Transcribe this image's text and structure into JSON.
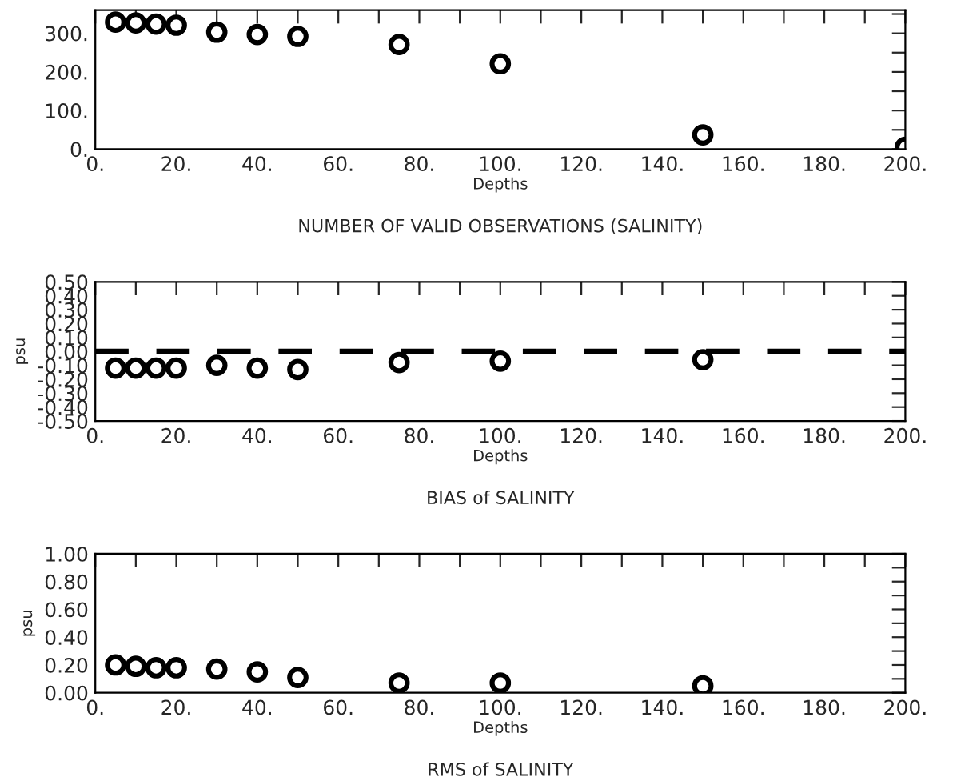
{
  "chart_data": [
    {
      "type": "scatter",
      "title": "NUMBER OF VALID OBSERVATIONS (SALINITY)",
      "xlabel": "Depths",
      "marker": "circle",
      "grid": false,
      "x": [
        5,
        10,
        15,
        20,
        30,
        40,
        50,
        75,
        100,
        150,
        200
      ],
      "series": [
        {
          "color": "#000000",
          "values": [
            329,
            327,
            324,
            321,
            303,
            297,
            292,
            271,
            221,
            37,
            5
          ]
        }
      ],
      "xlim": [
        0,
        200
      ],
      "xticks": [
        {
          "value": 0,
          "label": "0."
        },
        {
          "value": 10,
          "label": null
        },
        {
          "value": 20,
          "label": "20."
        },
        {
          "value": 30,
          "label": null
        },
        {
          "value": 40,
          "label": "40."
        },
        {
          "value": 50,
          "label": null
        },
        {
          "value": 60,
          "label": "60."
        },
        {
          "value": 70,
          "label": null
        },
        {
          "value": 80,
          "label": "80."
        },
        {
          "value": 90,
          "label": null
        },
        {
          "value": 100,
          "label": "100."
        },
        {
          "value": 110,
          "label": null
        },
        {
          "value": 120,
          "label": "120."
        },
        {
          "value": 130,
          "label": null
        },
        {
          "value": 140,
          "label": "140."
        },
        {
          "value": 150,
          "label": null
        },
        {
          "value": 160,
          "label": "160."
        },
        {
          "value": 170,
          "label": null
        },
        {
          "value": 180,
          "label": "180."
        },
        {
          "value": 190,
          "label": null
        },
        {
          "value": 200,
          "label": "200."
        }
      ],
      "ylim": [
        0,
        360
      ],
      "yticks": [
        {
          "value": 0,
          "label": "0."
        },
        {
          "value": 50,
          "label": null
        },
        {
          "value": 100,
          "label": "100."
        },
        {
          "value": 150,
          "label": null
        },
        {
          "value": 200,
          "label": "200."
        },
        {
          "value": 250,
          "label": null
        },
        {
          "value": 300,
          "label": "300."
        },
        {
          "value": 350,
          "label": null
        }
      ]
    },
    {
      "type": "scatter",
      "title": "BIAS of SALINITY",
      "xlabel": "Depths",
      "ylabel": "psu",
      "marker": "circle",
      "grid": false,
      "x": [
        5,
        10,
        15,
        20,
        30,
        40,
        50,
        75,
        100,
        150
      ],
      "series": [
        {
          "color": "#000000",
          "values": [
            -0.12,
            -0.12,
            -0.12,
            -0.12,
            -0.1,
            -0.12,
            -0.13,
            -0.08,
            -0.07,
            -0.06
          ]
        }
      ],
      "ref_lines": [
        {
          "axis": "y",
          "value": 0,
          "color": "#000000",
          "line_style": "dashed"
        }
      ],
      "xlim": [
        0,
        200
      ],
      "xticks": [
        {
          "value": 0,
          "label": "0."
        },
        {
          "value": 10,
          "label": null
        },
        {
          "value": 20,
          "label": "20."
        },
        {
          "value": 30,
          "label": null
        },
        {
          "value": 40,
          "label": "40."
        },
        {
          "value": 50,
          "label": null
        },
        {
          "value": 60,
          "label": "60."
        },
        {
          "value": 70,
          "label": null
        },
        {
          "value": 80,
          "label": "80."
        },
        {
          "value": 90,
          "label": null
        },
        {
          "value": 100,
          "label": "100."
        },
        {
          "value": 110,
          "label": null
        },
        {
          "value": 120,
          "label": "120."
        },
        {
          "value": 130,
          "label": null
        },
        {
          "value": 140,
          "label": "140."
        },
        {
          "value": 150,
          "label": null
        },
        {
          "value": 160,
          "label": "160."
        },
        {
          "value": 170,
          "label": null
        },
        {
          "value": 180,
          "label": "180."
        },
        {
          "value": 190,
          "label": null
        },
        {
          "value": 200,
          "label": "200."
        }
      ],
      "ylim": [
        -0.5,
        0.5
      ],
      "yticks": [
        {
          "value": -0.5,
          "label": "-0.50"
        },
        {
          "value": -0.4,
          "label": "-0.40"
        },
        {
          "value": -0.3,
          "label": "-0.30"
        },
        {
          "value": -0.2,
          "label": "-0.20"
        },
        {
          "value": -0.1,
          "label": "-0.10"
        },
        {
          "value": 0,
          "label": "0.00"
        },
        {
          "value": 0.1,
          "label": "0.10"
        },
        {
          "value": 0.2,
          "label": "0.20"
        },
        {
          "value": 0.3,
          "label": "0.30"
        },
        {
          "value": 0.4,
          "label": "0.40"
        },
        {
          "value": 0.5,
          "label": "0.50"
        }
      ]
    },
    {
      "type": "scatter",
      "title": "RMS of SALINITY",
      "xlabel": "Depths",
      "ylabel": "psu",
      "marker": "circle",
      "grid": false,
      "x": [
        5,
        10,
        15,
        20,
        30,
        40,
        50,
        75,
        100,
        150
      ],
      "series": [
        {
          "color": "#000000",
          "values": [
            0.2,
            0.19,
            0.18,
            0.18,
            0.17,
            0.15,
            0.11,
            0.07,
            0.07,
            0.05
          ]
        }
      ],
      "xlim": [
        0,
        200
      ],
      "xticks": [
        {
          "value": 0,
          "label": "0."
        },
        {
          "value": 10,
          "label": null
        },
        {
          "value": 20,
          "label": "20."
        },
        {
          "value": 30,
          "label": null
        },
        {
          "value": 40,
          "label": "40."
        },
        {
          "value": 50,
          "label": null
        },
        {
          "value": 60,
          "label": "60."
        },
        {
          "value": 70,
          "label": null
        },
        {
          "value": 80,
          "label": "80."
        },
        {
          "value": 90,
          "label": null
        },
        {
          "value": 100,
          "label": "100."
        },
        {
          "value": 110,
          "label": null
        },
        {
          "value": 120,
          "label": "120."
        },
        {
          "value": 130,
          "label": null
        },
        {
          "value": 140,
          "label": "140."
        },
        {
          "value": 150,
          "label": null
        },
        {
          "value": 160,
          "label": "160."
        },
        {
          "value": 170,
          "label": null
        },
        {
          "value": 180,
          "label": "180."
        },
        {
          "value": 190,
          "label": null
        },
        {
          "value": 200,
          "label": "200."
        }
      ],
      "ylim": [
        0,
        1.0
      ],
      "yticks": [
        {
          "value": 0,
          "label": "0.00"
        },
        {
          "value": 0.1,
          "label": null
        },
        {
          "value": 0.2,
          "label": "0.20"
        },
        {
          "value": 0.3,
          "label": null
        },
        {
          "value": 0.4,
          "label": "0.40"
        },
        {
          "value": 0.5,
          "label": null
        },
        {
          "value": 0.6,
          "label": "0.60"
        },
        {
          "value": 0.7,
          "label": null
        },
        {
          "value": 0.8,
          "label": "0.80"
        },
        {
          "value": 0.9,
          "label": null
        },
        {
          "value": 1.0,
          "label": "1.00"
        }
      ]
    }
  ]
}
